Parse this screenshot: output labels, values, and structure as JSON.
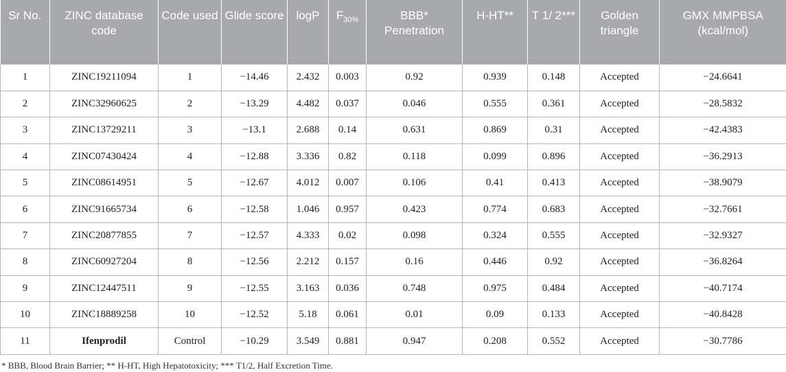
{
  "table": {
    "headers": {
      "sr_no": "Sr No.",
      "zinc_code": "ZINC database code",
      "code_used": "Code used",
      "glide": "Glide score",
      "logp": "logP",
      "f30_base": "F",
      "f30_sub": "30%",
      "bbb": "BBB* Penetration",
      "hht": "H-HT**",
      "t12": "T 1/ 2***",
      "golden": "Golden triangle",
      "gmx": "GMX MMPBSA (kcal/mol)"
    },
    "rows": [
      {
        "sr": "1",
        "zinc": "ZINC19211094",
        "code": "1",
        "glide": "−14.46",
        "logp": "2.432",
        "f30": "0.003",
        "bbb": "0.92",
        "hht": "0.939",
        "t": "0.148",
        "golden": "Accepted",
        "gmx": "−24.6641"
      },
      {
        "sr": "2",
        "zinc": "ZINC32960625",
        "code": "2",
        "glide": "−13.29",
        "logp": "4.482",
        "f30": "0.037",
        "bbb": "0.046",
        "hht": "0.555",
        "t": "0.361",
        "golden": "Accepted",
        "gmx": "−28.5832"
      },
      {
        "sr": "3",
        "zinc": "ZINC13729211",
        "code": "3",
        "glide": "−13.1",
        "logp": "2.688",
        "f30": "0.14",
        "bbb": "0.631",
        "hht": "0.869",
        "t": "0.31",
        "golden": "Accepted",
        "gmx": "−42.4383"
      },
      {
        "sr": "4",
        "zinc": "ZINC07430424",
        "code": "4",
        "glide": "−12.88",
        "logp": "3.336",
        "f30": "0.82",
        "bbb": "0.118",
        "hht": "0.099",
        "t": "0.896",
        "golden": "Accepted",
        "gmx": "−36.2913"
      },
      {
        "sr": "5",
        "zinc": "ZINC08614951",
        "code": "5",
        "glide": "−12.67",
        "logp": "4.012",
        "f30": "0.007",
        "bbb": "0.106",
        "hht": "0.41",
        "t": "0.413",
        "golden": "Accepted",
        "gmx": "−38.9079"
      },
      {
        "sr": "6",
        "zinc": "ZINC91665734",
        "code": "6",
        "glide": "−12.58",
        "logp": "1.046",
        "f30": "0.957",
        "bbb": "0.423",
        "hht": "0.774",
        "t": "0.683",
        "golden": "Accepted",
        "gmx": "−32.7661"
      },
      {
        "sr": "7",
        "zinc": "ZINC20877855",
        "code": "7",
        "glide": "−12.57",
        "logp": "4.333",
        "f30": "0.02",
        "bbb": "0.098",
        "hht": "0.324",
        "t": "0.555",
        "golden": "Accepted",
        "gmx": "−32.9327"
      },
      {
        "sr": "8",
        "zinc": "ZINC60927204",
        "code": "8",
        "glide": "−12.56",
        "logp": "2.212",
        "f30": "0.157",
        "bbb": "0.16",
        "hht": "0.446",
        "t": "0.92",
        "golden": "Accepted",
        "gmx": "−36.8264"
      },
      {
        "sr": "9",
        "zinc": "ZINC12447511",
        "code": "9",
        "glide": "−12.55",
        "logp": "3.163",
        "f30": "0.036",
        "bbb": "0.748",
        "hht": "0.975",
        "t": "0.484",
        "golden": "Accepted",
        "gmx": "−40.7174"
      },
      {
        "sr": "10",
        "zinc": "ZINC18889258",
        "code": "10",
        "glide": "−12.52",
        "logp": "5.18",
        "f30": "0.061",
        "bbb": "0.01",
        "hht": "0.09",
        "t": "0.133",
        "golden": "Accepted",
        "gmx": "−40.8428"
      },
      {
        "sr": "11",
        "zinc": "Ifenprodil",
        "code": "Control",
        "glide": "−10.29",
        "logp": "3.549",
        "f30": "0.881",
        "bbb": "0.947",
        "hht": "0.208",
        "t": "0.552",
        "golden": "Accepted",
        "gmx": "−30.7786"
      }
    ]
  },
  "footnote": "* BBB, Blood Brain Barrier; ** H-HT, High Hepatotoxicity; *** T1/2, Half Excretion Time.",
  "colors": {
    "header_bg": "#a7a9ac",
    "header_text": "#ffffff",
    "grid": "#b5b5b5"
  }
}
